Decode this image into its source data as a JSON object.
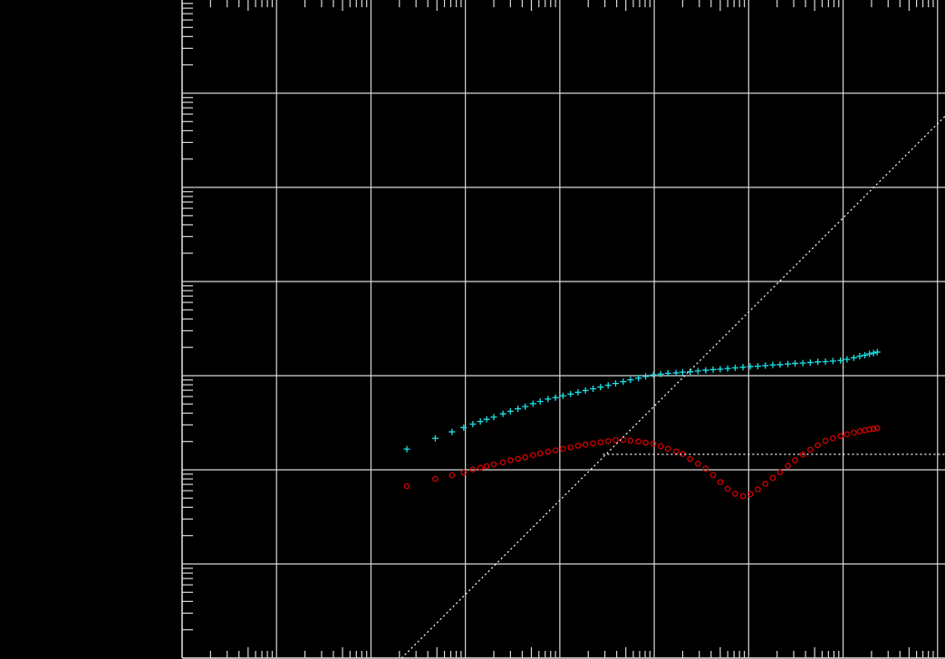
{
  "chart_data": {
    "type": "scatter",
    "xlog": true,
    "ylog": true,
    "grid": true,
    "xlim": [
      0.0001,
      12000
    ],
    "ylim": [
      0.01,
      100000
    ],
    "xticks": [
      0.0001,
      0.001,
      0.01,
      0.1,
      1,
      10,
      100,
      1000,
      10000
    ],
    "yticks": [
      0.01,
      0.1,
      1,
      10,
      100,
      1000,
      10000,
      100000
    ],
    "series": [
      {
        "color": "#19e3ea",
        "marker": "plus",
        "x": [
          0.024,
          0.048,
          0.072,
          0.096,
          0.12,
          0.144,
          0.168,
          0.2,
          0.25,
          0.3,
          0.36,
          0.43,
          0.52,
          0.62,
          0.75,
          0.9,
          1.08,
          1.3,
          1.56,
          1.87,
          2.25,
          2.7,
          3.25,
          3.9,
          4.7,
          5.6,
          6.8,
          8.1,
          9.8,
          11.7,
          14,
          17,
          20,
          24,
          29,
          35,
          42,
          50,
          60,
          72,
          87,
          104,
          125,
          150,
          180,
          215,
          260,
          310,
          375,
          450,
          540,
          650,
          780,
          940,
          1100,
          1300,
          1500,
          1700,
          1900,
          2100,
          2300
        ],
        "values": [
          1.66,
          2.16,
          2.53,
          2.81,
          3.06,
          3.26,
          3.44,
          3.63,
          3.93,
          4.18,
          4.45,
          4.7,
          5.04,
          5.32,
          5.64,
          5.85,
          6.11,
          6.38,
          6.65,
          6.95,
          7.26,
          7.57,
          7.91,
          8.26,
          8.63,
          9.02,
          9.42,
          9.82,
          10.2,
          10.4,
          10.6,
          10.7,
          10.9,
          11.0,
          11.2,
          11.4,
          11.6,
          11.7,
          11.9,
          12.1,
          12.3,
          12.5,
          12.6,
          12.8,
          13.0,
          13.1,
          13.3,
          13.5,
          13.6,
          13.8,
          14.0,
          14.1,
          14.3,
          14.5,
          14.9,
          15.5,
          16.1,
          16.5,
          17.0,
          17.4,
          17.8
        ]
      },
      {
        "color": "#e00000",
        "marker": "circle",
        "x": [
          0.024,
          0.048,
          0.072,
          0.096,
          0.12,
          0.144,
          0.168,
          0.2,
          0.25,
          0.3,
          0.36,
          0.43,
          0.52,
          0.62,
          0.75,
          0.9,
          1.08,
          1.3,
          1.56,
          1.87,
          2.25,
          2.7,
          3.25,
          3.9,
          4.7,
          5.6,
          6.8,
          8.1,
          9.8,
          11.7,
          14,
          17,
          20,
          24,
          29,
          35,
          42,
          50,
          60,
          72,
          87,
          104,
          125,
          150,
          180,
          215,
          260,
          310,
          375,
          450,
          540,
          650,
          780,
          940,
          1100,
          1300,
          1500,
          1700,
          1900,
          2100,
          2300
        ],
        "values": [
          0.67,
          0.8,
          0.875,
          0.935,
          1.01,
          1.05,
          1.09,
          1.14,
          1.2,
          1.26,
          1.31,
          1.36,
          1.43,
          1.49,
          1.56,
          1.61,
          1.67,
          1.73,
          1.8,
          1.85,
          1.91,
          1.96,
          2.01,
          2.07,
          2.08,
          2.04,
          2.0,
          1.94,
          1.9,
          1.78,
          1.67,
          1.57,
          1.47,
          1.3,
          1.16,
          1.03,
          0.88,
          0.74,
          0.63,
          0.557,
          0.526,
          0.55,
          0.62,
          0.71,
          0.82,
          0.94,
          1.1,
          1.26,
          1.45,
          1.63,
          1.82,
          2.03,
          2.16,
          2.28,
          2.38,
          2.48,
          2.57,
          2.63,
          2.69,
          2.73,
          2.77
        ]
      },
      {
        "color": "#ffffff",
        "marker": "none",
        "linestyle": "dotted",
        "x": [
          0.0211,
          12000
        ],
        "values": [
          0.01,
          5687
        ]
      },
      {
        "color": "#ffffff",
        "marker": "none",
        "linestyle": "dotted",
        "x": [
          2.86,
          12000
        ],
        "values": [
          1.46,
          1.46
        ]
      }
    ]
  }
}
